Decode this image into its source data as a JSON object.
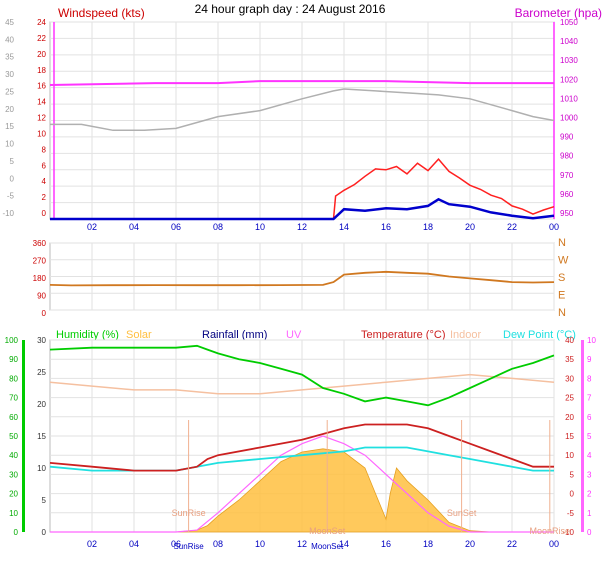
{
  "title": "24 hour graph day : 24 August 2016",
  "x_axis": {
    "ticks": [
      "02",
      "04",
      "06",
      "08",
      "10",
      "12",
      "14",
      "16",
      "18",
      "20",
      "22",
      "00"
    ],
    "tick_hours": [
      2,
      4,
      6,
      8,
      10,
      12,
      14,
      16,
      18,
      20,
      22,
      24
    ],
    "range": [
      0,
      24
    ]
  },
  "colors": {
    "axis_blue": "#0000c0",
    "windspeed": "#cc0000",
    "gust": "#ff2020",
    "windavg": "#0000cc",
    "barometer": "#ff33ff",
    "bar_secondary": "#b0b0b0",
    "direction": "#d07820",
    "humidity": "#00cc00",
    "solar": "#ffbf40",
    "rainfall": "#000080",
    "uv": "#ff66ff",
    "temperature": "#cc2020",
    "indoor": "#f5c0a0",
    "dewpoint": "#20e0e0"
  },
  "chart_data": [
    {
      "type": "line",
      "name": "wind-barometer",
      "left_axis_label": "Windspeed (kts)",
      "right_axis_label": "Barometer (hpa)",
      "left_ticks": [
        "24",
        "22",
        "20",
        "18",
        "16",
        "14",
        "12",
        "10",
        "8",
        "6",
        "4",
        "2",
        "0"
      ],
      "left_ylim": [
        0,
        24
      ],
      "outer_ticks": [
        "45",
        "40",
        "35",
        "30",
        "25",
        "20",
        "15",
        "10",
        "5",
        "0",
        "-5",
        "-10"
      ],
      "right_ticks": [
        "1050",
        "1040",
        "1030",
        "1020",
        "1010",
        "1000",
        "990",
        "980",
        "970",
        "960",
        "950"
      ],
      "right_ylim": [
        950,
        1050
      ],
      "barometer_main": {
        "x": [
          0,
          5,
          8,
          10,
          16,
          20,
          24
        ],
        "y": [
          1018,
          1019,
          1019,
          1020,
          1020,
          1019,
          1019
        ]
      },
      "barometer_secondary": {
        "x": [
          0,
          1.5,
          3,
          4.5,
          6,
          7,
          8,
          10,
          12,
          13.5,
          14,
          15.5,
          17,
          18.5,
          20,
          21,
          22,
          23,
          24
        ],
        "y": [
          998,
          998,
          995,
          995,
          996,
          999,
          1002,
          1005,
          1011,
          1015,
          1016,
          1015,
          1014,
          1013,
          1011,
          1008,
          1005,
          1002,
          1000
        ]
      },
      "wind_avg": {
        "x": [
          0,
          13.5,
          14,
          15,
          16,
          17,
          18,
          18.5,
          19,
          20,
          21,
          22,
          23,
          24
        ],
        "y": [
          0,
          0,
          1.2,
          1.0,
          1.3,
          1.2,
          1.6,
          2.4,
          1.8,
          1.5,
          0.8,
          0.4,
          0.1,
          0.4
        ]
      },
      "wind_gust": {
        "x": [
          0,
          13.5,
          13.6,
          14,
          14.5,
          15,
          15.5,
          16,
          16.5,
          17,
          17.5,
          18,
          18.5,
          19,
          19.5,
          20,
          20.5,
          21,
          21.5,
          22,
          22.5,
          23,
          23.5,
          24
        ],
        "y": [
          0,
          0,
          2.8,
          3.5,
          4.2,
          5.2,
          6.1,
          6.0,
          6.4,
          5.5,
          6.8,
          5.9,
          7.3,
          5.8,
          5.0,
          4.1,
          3.6,
          2.9,
          2.5,
          1.6,
          1.2,
          0.6,
          1.1,
          1.5
        ]
      }
    },
    {
      "type": "line",
      "name": "wind-direction",
      "left_ticks": [
        "360",
        "270",
        "180",
        "90",
        "0"
      ],
      "left_ylim": [
        0,
        360
      ],
      "right_ticks": [
        "N",
        "W",
        "S",
        "E",
        "N"
      ],
      "direction": {
        "x": [
          0,
          1,
          3,
          5,
          7,
          9,
          11,
          13,
          13.5,
          14,
          15,
          16,
          17,
          18,
          19,
          20,
          21,
          22,
          23,
          24
        ],
        "y": [
          135,
          132,
          133,
          134,
          133,
          133,
          134,
          135,
          150,
          190,
          200,
          205,
          200,
          195,
          180,
          170,
          160,
          150,
          148,
          150
        ]
      }
    },
    {
      "type": "line",
      "name": "humidity-temp-solar",
      "header_labels": [
        "Humidity (%)",
        "Solar",
        "Rainfall (mm)",
        "UV",
        "Temperature (°C)",
        "Indoor",
        "Dew Point (°C)"
      ],
      "humidity_ticks": [
        "100",
        "90",
        "80",
        "70",
        "60",
        "50",
        "40",
        "30",
        "20",
        "10",
        "0"
      ],
      "humidity_ylim": [
        0,
        100
      ],
      "solar_ticks": [
        "30",
        "25",
        "20",
        "15",
        "10",
        "5",
        "0"
      ],
      "solar_ylim": [
        0,
        30
      ],
      "temp_ticks": [
        "40",
        "35",
        "30",
        "25",
        "20",
        "15",
        "10",
        "5",
        "0",
        "-5",
        "-10"
      ],
      "temp_ylim": [
        -10,
        40
      ],
      "uv_ticks": [
        "10",
        "9",
        "8",
        "7",
        "6",
        "5",
        "4",
        "3",
        "2",
        "1",
        "0"
      ],
      "uv_ylim": [
        0,
        10
      ],
      "humidity": {
        "x": [
          0,
          2,
          4,
          6,
          7,
          7.5,
          8,
          9,
          10,
          11,
          12,
          13,
          14,
          15,
          16,
          17,
          18,
          19,
          20,
          21,
          22,
          23,
          24
        ],
        "y": [
          95,
          96,
          96,
          96,
          97,
          95,
          93,
          90,
          88,
          85,
          82,
          75,
          72,
          68,
          70,
          68,
          66,
          70,
          75,
          80,
          85,
          88,
          92
        ]
      },
      "temperature": {
        "x": [
          0,
          2,
          4,
          6,
          7,
          7.5,
          8,
          10,
          12,
          14,
          15,
          16,
          17,
          18,
          19,
          20,
          21,
          22,
          23,
          24
        ],
        "y": [
          8,
          7,
          6,
          6,
          7,
          9,
          10,
          12,
          14,
          17,
          18,
          18,
          18,
          17,
          15,
          13,
          11,
          9,
          7,
          7
        ]
      },
      "dewpoint": {
        "x": [
          0,
          2,
          4,
          6,
          7,
          8,
          10,
          12,
          14,
          15,
          16,
          17,
          18,
          19,
          20,
          21,
          22,
          23,
          24
        ],
        "y": [
          7,
          6,
          6,
          6,
          7,
          8,
          9,
          10,
          11,
          12,
          12,
          12,
          11,
          10,
          9,
          8,
          7,
          6,
          6
        ]
      },
      "indoor": {
        "x": [
          0,
          2,
          4,
          6,
          8,
          10,
          12,
          14,
          16,
          18,
          20,
          22,
          24
        ],
        "y": [
          29,
          28,
          27,
          27,
          26,
          26,
          27,
          28,
          29,
          30,
          31,
          30,
          29
        ]
      },
      "solar": {
        "x": [
          0,
          6,
          7,
          7.5,
          8,
          9,
          10,
          11,
          12,
          13,
          14,
          15,
          15.5,
          16,
          16.2,
          16.5,
          17,
          18,
          19,
          20,
          21,
          24
        ],
        "y": [
          0,
          0,
          0.3,
          1,
          2.5,
          5,
          8,
          11,
          12.5,
          13,
          12.5,
          10,
          6,
          2,
          6,
          10,
          8,
          5,
          1.5,
          0.2,
          0,
          0
        ]
      },
      "uv": {
        "x": [
          0,
          6,
          7,
          8,
          9,
          10,
          11,
          12,
          13,
          14,
          15,
          16,
          17,
          18,
          19,
          20,
          24
        ],
        "y": [
          0,
          0,
          0.1,
          1,
          2,
          3,
          4,
          4.6,
          5,
          4.6,
          4,
          3,
          2,
          1,
          0.3,
          0,
          0
        ]
      },
      "event_labels": [
        "SunRise",
        "SunSet",
        "MoonSet",
        "MoonRise"
      ],
      "bottom_labels": [
        "SunRise",
        "MoonSet"
      ],
      "event_hours": [
        6.6,
        19.6,
        13.2,
        23.8
      ]
    }
  ]
}
